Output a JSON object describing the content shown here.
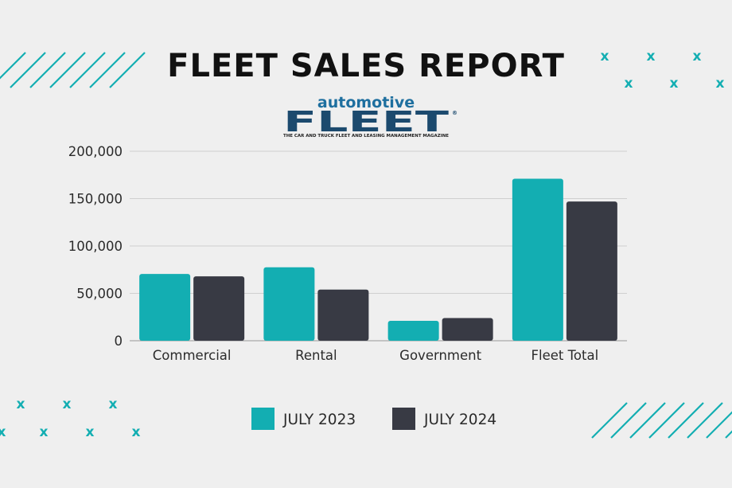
{
  "title": "FLEET SALES REPORT",
  "logo": {
    "top_word": "automotive",
    "main_word": "FLEET",
    "tagline": "THE CAR AND TRUCK FLEET AND LEASING MANAGEMENT MAGAZINE",
    "mark": "®",
    "primary_color": "#1c4a6e",
    "secondary_color": "#1e6f9f"
  },
  "colors": {
    "background": "#efefef",
    "accent": "#13aeb2",
    "dark": "#383a44",
    "grid": "#cfcfcf",
    "text": "#2b2b2b"
  },
  "decor": {
    "x_glyph": "x"
  },
  "chart_data": {
    "type": "bar",
    "categories": [
      "Commercial",
      "Rental",
      "Government",
      "Fleet Total"
    ],
    "series": [
      {
        "name": "JULY 2023",
        "values": [
          70500,
          77500,
          21000,
          171000
        ],
        "color": "#13aeb2"
      },
      {
        "name": "JULY 2024",
        "values": [
          68000,
          54000,
          24000,
          147000
        ],
        "color": "#383a44"
      }
    ],
    "ylim": [
      0,
      200000
    ],
    "yticks": [
      0,
      50000,
      100000,
      150000,
      200000
    ],
    "ytick_labels": [
      "0",
      "50,000",
      "100,000",
      "150,000",
      "200,000"
    ],
    "xlabel": "",
    "ylabel": "",
    "grid": true,
    "legend_position": "bottom"
  }
}
